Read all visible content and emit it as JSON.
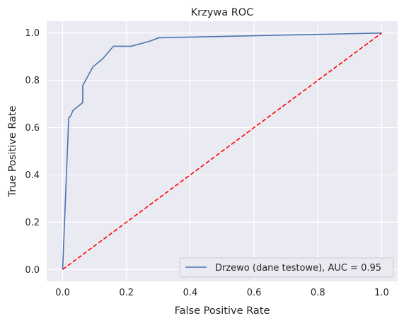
{
  "chart_data": {
    "type": "line",
    "title": "Krzywa ROC",
    "xlabel": "False Positive Rate",
    "ylabel": "True Positive Rate",
    "xlim": [
      -0.05,
      1.05
    ],
    "ylim": [
      -0.05,
      1.05
    ],
    "xticks": [
      "0.0",
      "0.2",
      "0.4",
      "0.6",
      "0.8",
      "1.0"
    ],
    "yticks": [
      "0.0",
      "0.2",
      "0.4",
      "0.6",
      "0.8",
      "1.0"
    ],
    "grid": true,
    "legend_position": "lower-right",
    "series": [
      {
        "name": "Drzewo (dane testowe), AUC = 0.95",
        "color": "#4c72b0",
        "style": "solid",
        "x": [
          0.0,
          0.019,
          0.025,
          0.032,
          0.063,
          0.063,
          0.095,
          0.127,
          0.159,
          0.214,
          0.27,
          0.302,
          1.0
        ],
        "y": [
          0.0,
          0.641,
          0.649,
          0.672,
          0.706,
          0.778,
          0.857,
          0.893,
          0.944,
          0.944,
          0.964,
          0.98,
          1.0
        ]
      },
      {
        "name": "",
        "color": "#ff0000",
        "style": "dashed",
        "x": [
          0.0,
          1.0
        ],
        "y": [
          0.0,
          1.0
        ]
      }
    ]
  }
}
